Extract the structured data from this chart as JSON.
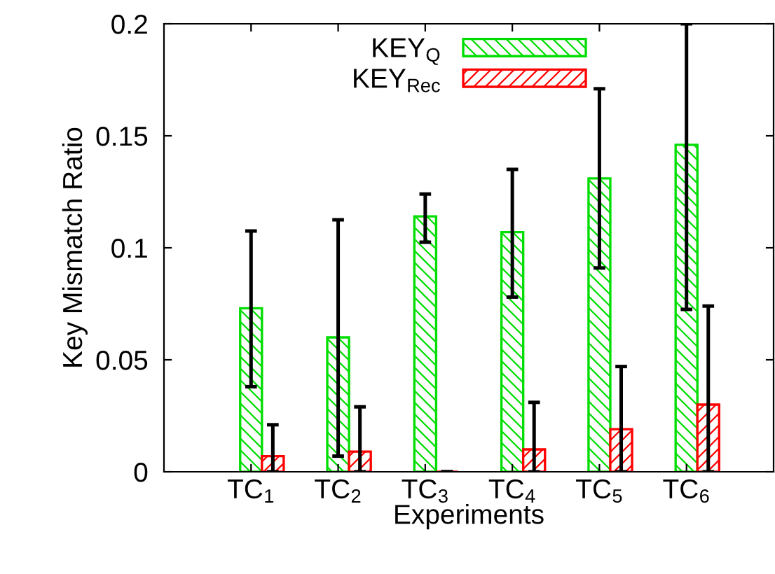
{
  "chart_data": {
    "type": "bar",
    "xlabel": "Experiments",
    "ylabel": "Key Mismatch Ratio",
    "categories": [
      "TC$_{1}$",
      "TC$_{2}$",
      "TC$_{3}$",
      "TC$_{4}$",
      "TC$_{5}$",
      "TC$_{6}$"
    ],
    "series": [
      {
        "name": "KEY$_{Q}$",
        "color": "#00dd00",
        "values": [
          0.073,
          0.06,
          0.114,
          0.107,
          0.131,
          0.146
        ],
        "errors": [
          [
            0.038,
            0.1075
          ],
          [
            0.007,
            0.1125
          ],
          [
            0.1025,
            0.124
          ],
          [
            0.078,
            0.135
          ],
          [
            0.091,
            0.171
          ],
          [
            0.0725,
            0.2
          ]
        ]
      },
      {
        "name": "KEY$_{Rec}$",
        "color": "#ff0000",
        "values": [
          0.007,
          0.009,
          0,
          0.01,
          0.019,
          0.03
        ],
        "errors": [
          [
            0,
            0.021
          ],
          [
            0,
            0.029
          ],
          [
            0,
            0
          ],
          [
            0,
            0.031
          ],
          [
            0,
            0.047
          ],
          [
            0,
            0.074
          ]
        ]
      }
    ],
    "ylim": [
      0,
      0.2
    ],
    "yticks": [
      0,
      0.05,
      0.1,
      0.15,
      0.2
    ],
    "grid": false,
    "legend": "top"
  }
}
